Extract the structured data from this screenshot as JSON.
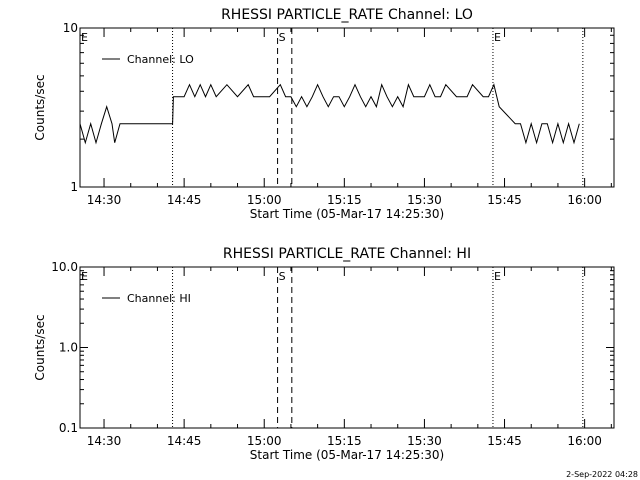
{
  "chart_data": [
    {
      "type": "line",
      "title": "RHESSI PARTICLE_RATE Channel: LO",
      "xlabel": "Start Time (05-Mar-17 14:25:30)",
      "ylabel": "Counts/sec",
      "yscale": "log",
      "ylim": [
        1,
        10
      ],
      "yticks": [
        "10",
        "1"
      ],
      "xtick_labels": [
        "14:30",
        "14:45",
        "15:00",
        "15:15",
        "15:30",
        "15:45",
        "16:00"
      ],
      "legend": {
        "entries": [
          "Channel: LO"
        ],
        "position": "top-left"
      },
      "markers": [
        {
          "label": "E",
          "time": "14:25:30",
          "style": "dotted"
        },
        {
          "label": "",
          "time": "14:42:50",
          "style": "dotted"
        },
        {
          "label": "S",
          "time": "15:02:30",
          "style": "dashed"
        },
        {
          "label": "",
          "time": "15:05:10",
          "style": "dashed"
        },
        {
          "label": "E",
          "time": "15:42:50",
          "style": "dotted"
        },
        {
          "label": "",
          "time": "15:59:40",
          "style": "dotted"
        }
      ],
      "series": [
        {
          "name": "Channel: LO",
          "x": [
            "14:25:30",
            "14:26:30",
            "14:27:30",
            "14:28:30",
            "14:29:30",
            "14:30:30",
            "14:31:30",
            "14:32:00",
            "14:33:00",
            "14:42:50",
            "14:43:00",
            "14:45:00",
            "14:46:00",
            "14:47:00",
            "14:48:00",
            "14:49:00",
            "14:50:00",
            "14:51:00",
            "14:53:00",
            "14:55:00",
            "14:57:00",
            "14:58:00",
            "14:59:00",
            "15:01:00",
            "15:03:00",
            "15:04:00",
            "15:05:00",
            "15:06:00",
            "15:07:00",
            "15:08:00",
            "15:09:00",
            "15:10:00",
            "15:11:00",
            "15:12:00",
            "15:13:00",
            "15:14:00",
            "15:15:00",
            "15:16:00",
            "15:17:00",
            "15:18:00",
            "15:19:00",
            "15:20:00",
            "15:21:00",
            "15:22:00",
            "15:23:00",
            "15:24:00",
            "15:25:00",
            "15:26:00",
            "15:27:00",
            "15:28:00",
            "15:30:00",
            "15:31:00",
            "15:32:00",
            "15:33:00",
            "15:34:00",
            "15:36:00",
            "15:38:00",
            "15:39:00",
            "15:41:00",
            "15:42:00",
            "15:43:00",
            "15:44:00",
            "15:47:00",
            "15:48:00",
            "15:49:00",
            "15:50:00",
            "15:51:00",
            "15:52:00",
            "15:53:00",
            "15:54:00",
            "15:55:00",
            "15:56:00",
            "15:57:00",
            "15:58:00",
            "15:59:00"
          ],
          "y": [
            2.5,
            1.9,
            2.5,
            1.9,
            2.5,
            3.2,
            2.5,
            1.9,
            2.5,
            2.5,
            3.7,
            3.7,
            4.4,
            3.7,
            4.4,
            3.7,
            4.4,
            3.7,
            4.4,
            3.7,
            4.4,
            3.7,
            3.7,
            3.7,
            4.4,
            3.7,
            3.7,
            3.2,
            3.7,
            3.2,
            3.7,
            4.4,
            3.7,
            3.2,
            3.7,
            3.7,
            3.2,
            3.7,
            4.4,
            3.7,
            3.2,
            3.7,
            3.2,
            4.4,
            3.7,
            3.2,
            3.7,
            3.2,
            4.4,
            3.7,
            3.7,
            4.4,
            3.7,
            3.7,
            4.4,
            3.7,
            3.7,
            4.4,
            3.7,
            3.7,
            4.4,
            3.2,
            2.5,
            2.5,
            1.9,
            2.5,
            1.9,
            2.5,
            2.5,
            1.9,
            2.5,
            1.9,
            2.5,
            1.9,
            2.5
          ]
        }
      ]
    },
    {
      "type": "line",
      "title": "RHESSI PARTICLE_RATE Channel: HI",
      "xlabel": "Start Time (05-Mar-17 14:25:30)",
      "ylabel": "Counts/sec",
      "yscale": "log",
      "ylim": [
        0.1,
        10
      ],
      "yticks": [
        "10.0",
        "1.0",
        "0.1"
      ],
      "xtick_labels": [
        "14:30",
        "14:45",
        "15:00",
        "15:15",
        "15:30",
        "15:45",
        "16:00"
      ],
      "legend": {
        "entries": [
          "Channel: HI"
        ],
        "position": "top-left"
      },
      "markers": [
        {
          "label": "E",
          "time": "14:25:30",
          "style": "dotted"
        },
        {
          "label": "",
          "time": "14:42:50",
          "style": "dotted"
        },
        {
          "label": "S",
          "time": "15:02:30",
          "style": "dashed"
        },
        {
          "label": "",
          "time": "15:05:10",
          "style": "dashed"
        },
        {
          "label": "E",
          "time": "15:42:50",
          "style": "dotted"
        },
        {
          "label": "",
          "time": "15:59:40",
          "style": "dotted"
        }
      ],
      "series": [
        {
          "name": "Channel: HI",
          "x": [],
          "y": []
        }
      ]
    }
  ],
  "footer": {
    "timestamp": "2-Sep-2022 04:28"
  }
}
